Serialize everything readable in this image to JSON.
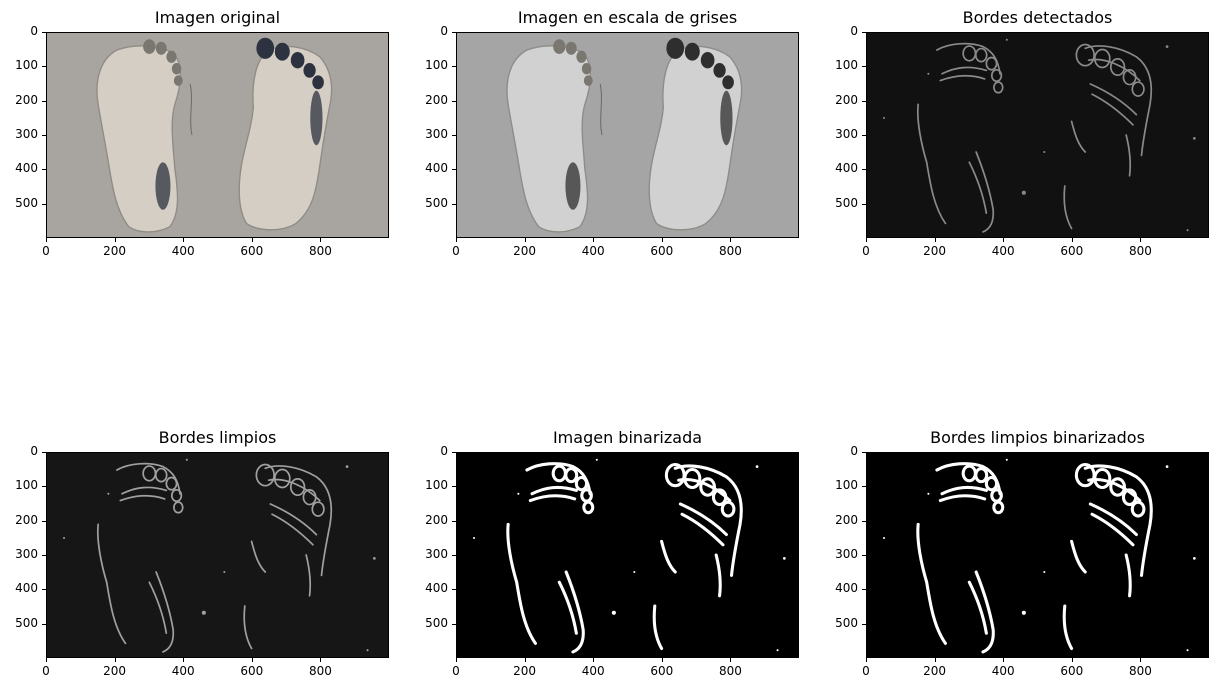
{
  "figure": {
    "background": "#ffffff"
  },
  "chart_data": [
    {
      "type": "image",
      "title": "Imagen original",
      "colormap": "rgb",
      "xticks": [
        "0",
        "200",
        "400",
        "600",
        "800"
      ],
      "yticks": [
        "0",
        "100",
        "200",
        "300",
        "400",
        "500"
      ],
      "xlim": [
        0,
        999
      ],
      "ylim": [
        599,
        0
      ],
      "colors": {
        "background": "#a8a49f",
        "footprint_light": "#d8d1c6",
        "toe_shadow": "#2c3240"
      }
    },
    {
      "type": "image",
      "title": "Imagen en escala de grises",
      "colormap": "gray",
      "xticks": [
        "0",
        "200",
        "400",
        "600",
        "800"
      ],
      "yticks": [
        "0",
        "100",
        "200",
        "300",
        "400",
        "500"
      ],
      "xlim": [
        0,
        999
      ],
      "ylim": [
        599,
        0
      ],
      "colors": {
        "background": "#a5a5a5",
        "footprint_light": "#d4d4d4",
        "toe_shadow": "#2e2e2e"
      }
    },
    {
      "type": "image",
      "title": "Bordes detectados",
      "colormap": "gray",
      "xticks": [
        "0",
        "200",
        "400",
        "600",
        "800"
      ],
      "yticks": [
        "0",
        "100",
        "200",
        "300",
        "400",
        "500"
      ],
      "xlim": [
        0,
        999
      ],
      "ylim": [
        599,
        0
      ],
      "colors": {
        "background": "#111111",
        "edge": "#8a8a8a"
      }
    },
    {
      "type": "image",
      "title": "Bordes limpios",
      "colormap": "gray",
      "xticks": [
        "0",
        "200",
        "400",
        "600",
        "800"
      ],
      "yticks": [
        "0",
        "100",
        "200",
        "300",
        "400",
        "500"
      ],
      "xlim": [
        0,
        999
      ],
      "ylim": [
        599,
        0
      ],
      "colors": {
        "background": "#161616",
        "edge": "#a0a0a0"
      }
    },
    {
      "type": "image",
      "title": "Imagen binarizada",
      "colormap": "binary",
      "xticks": [
        "0",
        "200",
        "400",
        "600",
        "800"
      ],
      "yticks": [
        "0",
        "100",
        "200",
        "300",
        "400",
        "500"
      ],
      "xlim": [
        0,
        999
      ],
      "ylim": [
        599,
        0
      ],
      "colors": {
        "background": "#000000",
        "edge": "#ffffff"
      }
    },
    {
      "type": "image",
      "title": "Bordes limpios binarizados",
      "colormap": "binary",
      "xticks": [
        "0",
        "200",
        "400",
        "600",
        "800"
      ],
      "yticks": [
        "0",
        "100",
        "200",
        "300",
        "400",
        "500"
      ],
      "xlim": [
        0,
        999
      ],
      "ylim": [
        599,
        0
      ],
      "colors": {
        "background": "#000000",
        "edge": "#ffffff"
      }
    }
  ]
}
